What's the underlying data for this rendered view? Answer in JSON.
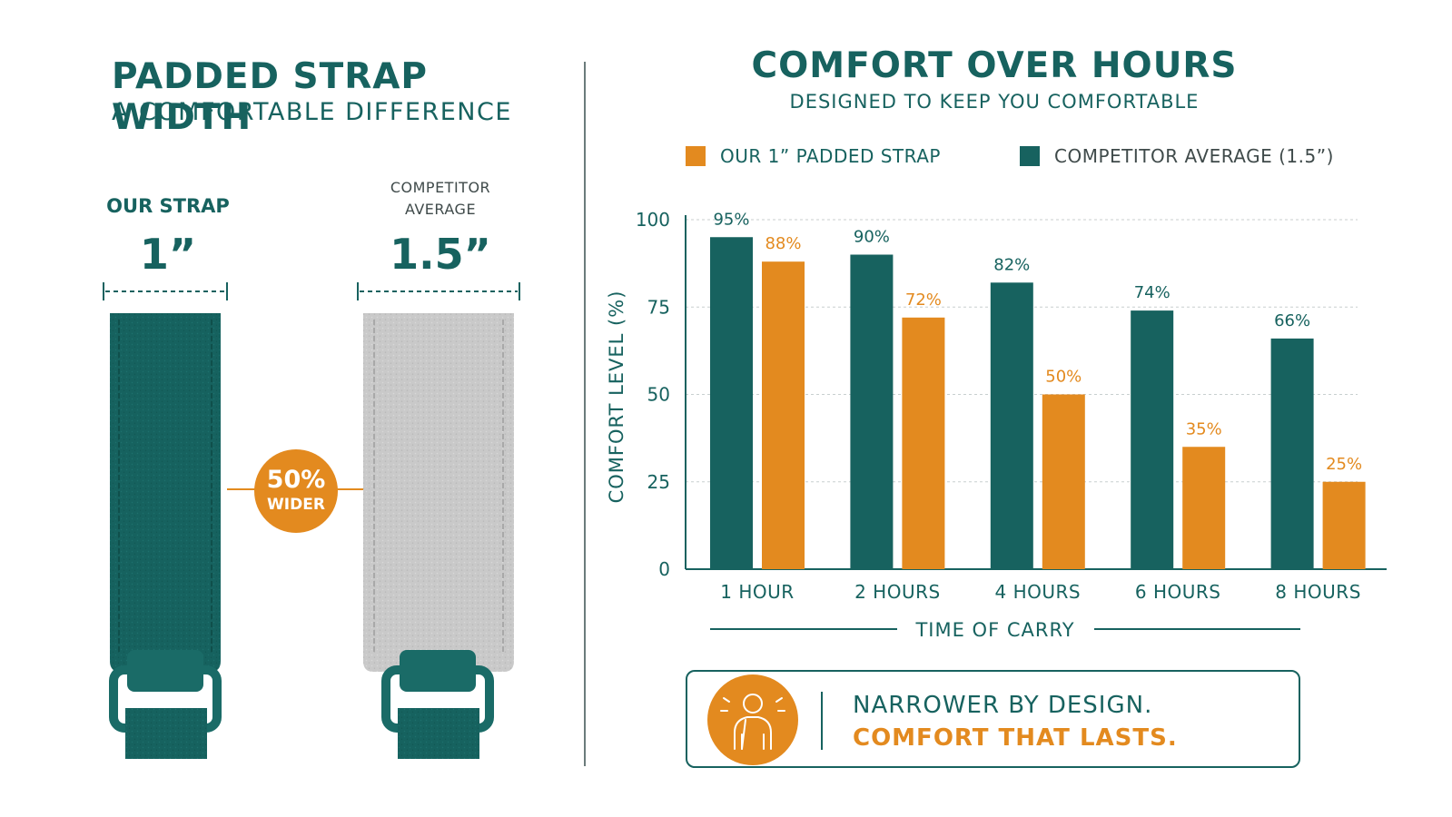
{
  "left": {
    "title": "PADDED STRAP WIDTH",
    "subtitle": "A COMFORTABLE DIFFERENCE",
    "our_strap_label": "OUR STRAP",
    "our_strap_width": "1”",
    "competitor_label_line1": "COMPETITOR",
    "competitor_label_line2": "AVERAGE",
    "competitor_width": "1.5”",
    "badge_percent": "50%",
    "badge_word": "WIDER"
  },
  "right": {
    "title": "COMFORT OVER HOURS",
    "subtitle": "DESIGNED TO KEEP YOU COMFORTABLE"
  },
  "callout": {
    "line1": "NARROWER BY DESIGN.",
    "line2": "COMFORT THAT LASTS."
  },
  "colors": {
    "teal": "#17625f",
    "orange": "#e38a1f",
    "grey_strap": "#c9c9c9"
  },
  "chart_data": {
    "type": "bar",
    "title": "COMFORT OVER HOURS",
    "subtitle": "DESIGNED TO KEEP YOU COMFORTABLE",
    "xlabel": "TIME OF CARRY",
    "ylabel": "COMFORT LEVEL (%)",
    "ylim": [
      0,
      100
    ],
    "yticks": [
      0,
      25,
      50,
      75,
      100
    ],
    "grid": true,
    "legend_position": "top",
    "categories": [
      "1 HOUR",
      "2 HOURS",
      "4 HOURS",
      "6 HOURS",
      "8 HOURS"
    ],
    "legend": [
      {
        "label": "OUR 1” PADDED STRAP",
        "color": "#e38a1f"
      },
      {
        "label": "COMPETITOR AVERAGE (1.5”)",
        "color": "#17625f"
      }
    ],
    "series": [
      {
        "name": "COMPETITOR AVERAGE (1.5”)",
        "color": "#17625f",
        "values": [
          95,
          90,
          82,
          74,
          66
        ],
        "labels": [
          "95%",
          "90%",
          "82%",
          "74%",
          "66%"
        ]
      },
      {
        "name": "OUR 1” PADDED STRAP",
        "color": "#e38a1f",
        "values": [
          88,
          72,
          50,
          35,
          25
        ],
        "labels": [
          "88%",
          "72%",
          "50%",
          "35%",
          "25%"
        ]
      }
    ]
  }
}
